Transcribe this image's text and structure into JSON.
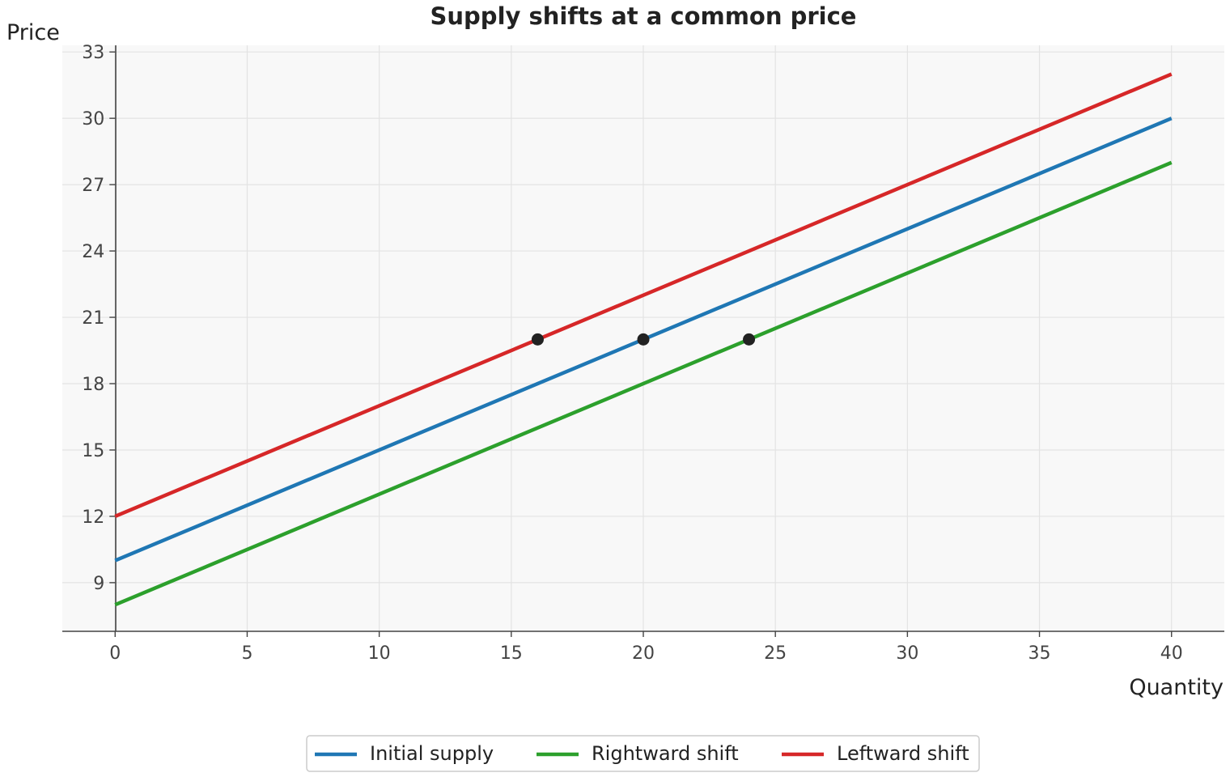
{
  "chart_data": {
    "type": "line",
    "title": "Supply shifts at a common price",
    "xlabel": "Quantity",
    "ylabel": "Price",
    "xlim": [
      -2,
      42
    ],
    "ylim": [
      6.8,
      33.3
    ],
    "xticks": [
      0,
      5,
      10,
      15,
      20,
      25,
      30,
      35,
      40
    ],
    "yticks": [
      9,
      12,
      15,
      18,
      21,
      24,
      27,
      30,
      33
    ],
    "grid": true,
    "legend_position": "bottom-center",
    "series": [
      {
        "name": "Initial supply",
        "color": "#1f77b4",
        "x": [
          0,
          40
        ],
        "y": [
          10,
          30
        ]
      },
      {
        "name": "Rightward shift",
        "color": "#2ca02c",
        "x": [
          0,
          40
        ],
        "y": [
          8,
          28
        ]
      },
      {
        "name": "Leftward shift",
        "color": "#d62728",
        "x": [
          0,
          40
        ],
        "y": [
          12,
          32
        ]
      }
    ],
    "points": [
      {
        "x": 16,
        "y": 20,
        "color": "#222222"
      },
      {
        "x": 20,
        "y": 20,
        "color": "#222222"
      },
      {
        "x": 24,
        "y": 20,
        "color": "#222222"
      }
    ]
  }
}
